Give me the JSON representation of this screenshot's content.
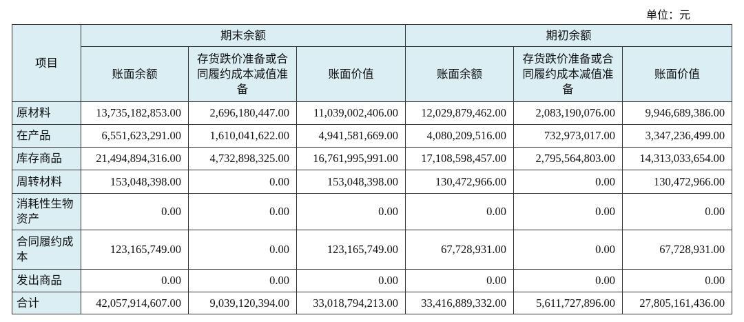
{
  "unit": "单位：元",
  "table": {
    "item_header": "项目",
    "groups": [
      "期末余额",
      "期初余额"
    ],
    "subheaders": [
      "账面余额",
      "存货跌价准备或合同履约成本减值准备",
      "账面价值",
      "账面余额",
      "存货跌价准备或合同履约成本减值准备",
      "账面价值"
    ],
    "rows": [
      [
        "原材料",
        "13,735,182,853.00",
        "2,696,180,447.00",
        "11,039,002,406.00",
        "12,029,879,462.00",
        "2,083,190,076.00",
        "9,946,689,386.00"
      ],
      [
        "在产品",
        "6,551,623,291.00",
        "1,610,041,622.00",
        "4,941,581,669.00",
        "4,080,209,516.00",
        "732,973,017.00",
        "3,347,236,499.00"
      ],
      [
        "库存商品",
        "21,494,894,316.00",
        "4,732,898,325.00",
        "16,761,995,991.00",
        "17,108,598,457.00",
        "2,795,564,803.00",
        "14,313,033,654.00"
      ],
      [
        "周转材料",
        "153,048,398.00",
        "0.00",
        "153,048,398.00",
        "130,472,966.00",
        "0.00",
        "130,472,966.00"
      ],
      [
        "消耗性生物资产",
        "0.00",
        "0.00",
        "0.00",
        "0.00",
        "0.00",
        "0.00"
      ],
      [
        "合同履约成本",
        "123,165,749.00",
        "0.00",
        "123,165,749.00",
        "67,728,931.00",
        "0.00",
        "67,728,931.00"
      ],
      [
        "发出商品",
        "0.00",
        "0.00",
        "0.00",
        "0.00",
        "0.00",
        "0.00"
      ],
      [
        "合计",
        "42,057,914,607.00",
        "9,039,120,394.00",
        "33,018,794,213.00",
        "33,416,889,332.00",
        "5,611,727,896.00",
        "27,805,161,436.00"
      ]
    ]
  }
}
